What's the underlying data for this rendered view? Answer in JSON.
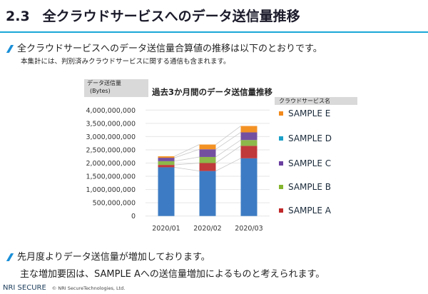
{
  "header": {
    "section_number": "2.3",
    "title": "全クラウドサービスへのデータ送信量推移"
  },
  "intro": {
    "bullet": "全クラウドサービスへのデータ送信量合算値の推移は以下のとおりです。",
    "note": "本集計には、判別済みクラウドサービスに関する通信も含まれます。"
  },
  "chart_data": {
    "type": "bar",
    "stacked": true,
    "title": "過去3か月間のデータ送信量推移",
    "ylabel": "データ送信量\n(Bytes)",
    "ylabel_lines": [
      "データ送信量",
      "(Bytes)"
    ],
    "xlabel": "",
    "legend_title": "クラウドサービス名",
    "legend_position": "right",
    "categories": [
      "2020/01",
      "2020/02",
      "2020/03"
    ],
    "ylim": [
      0,
      4000000000
    ],
    "yticks": [
      0,
      500000000,
      1000000000,
      1500000000,
      2000000000,
      2500000000,
      3000000000,
      3500000000,
      4000000000
    ],
    "ytick_labels": [
      "0",
      "500,000,000",
      "1,000,000,000",
      "1,500,000,000",
      "2,000,000,000",
      "2,500,000,000",
      "3,000,000,000",
      "3,500,000,000",
      "4,000,000,000"
    ],
    "grid": true,
    "series": [
      {
        "name": "SAMPLE D",
        "values": [
          1840000000,
          1700000000,
          2180000000
        ],
        "bar_color": "#3d7cc4",
        "legend_color": "#1ba0c8"
      },
      {
        "name": "SAMPLE A",
        "values": [
          90000000,
          300000000,
          470000000
        ],
        "bar_color": "#c0393b",
        "legend_color": "#c0282a"
      },
      {
        "name": "SAMPLE B",
        "values": [
          140000000,
          230000000,
          220000000
        ],
        "bar_color": "#8db84a",
        "legend_color": "#84b52e"
      },
      {
        "name": "SAMPLE C",
        "values": [
          130000000,
          290000000,
          290000000
        ],
        "bar_color": "#7450a0",
        "legend_color": "#6a3fa0"
      },
      {
        "name": "SAMPLE E",
        "values": [
          55000000,
          180000000,
          240000000
        ],
        "bar_color": "#f39224",
        "legend_color": "#f28a1c"
      }
    ],
    "legend_order": [
      "SAMPLE E",
      "SAMPLE D",
      "SAMPLE C",
      "SAMPLE B",
      "SAMPLE A"
    ]
  },
  "summary": {
    "line1": "先月度よりデータ送信量が増加しております。",
    "line2": "主な増加要因は、SAMPLE Aへの送信量増加によるものと考えられます。"
  },
  "footer": {
    "logo": "NRI SECURE",
    "copyright": "© NRI SecureTechnologies, Ltd."
  }
}
